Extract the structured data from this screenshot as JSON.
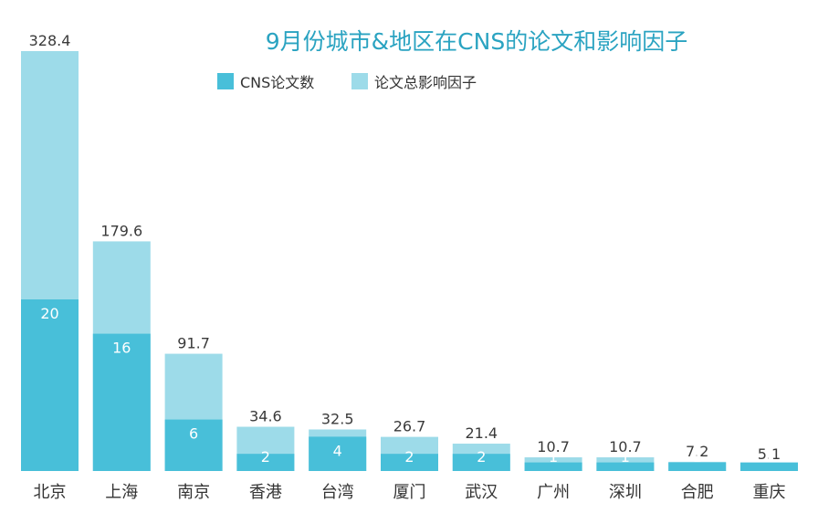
{
  "chart_data": {
    "type": "bar",
    "title": "9月份城市&地区在CNS的论文和影响因子",
    "categories": [
      "北京",
      "上海",
      "南京",
      "香港",
      "台湾",
      "厦门",
      "武汉",
      "广州",
      "深圳",
      "合肥",
      "重庆"
    ],
    "series": [
      {
        "name": "CNS论文数",
        "values": [
          20,
          16,
          6,
          2,
          4,
          2,
          2,
          1,
          1,
          1,
          1
        ]
      },
      {
        "name": "论文总影响因子",
        "values": [
          328.4,
          179.6,
          91.7,
          34.6,
          32.5,
          26.7,
          21.4,
          10.7,
          10.7,
          7.2,
          5.1
        ]
      }
    ],
    "colors": {
      "papers": "#48bfd9",
      "impact": "#9ddbe9",
      "title": "#2aa3c1"
    },
    "legend_position": "top",
    "grid": false
  }
}
